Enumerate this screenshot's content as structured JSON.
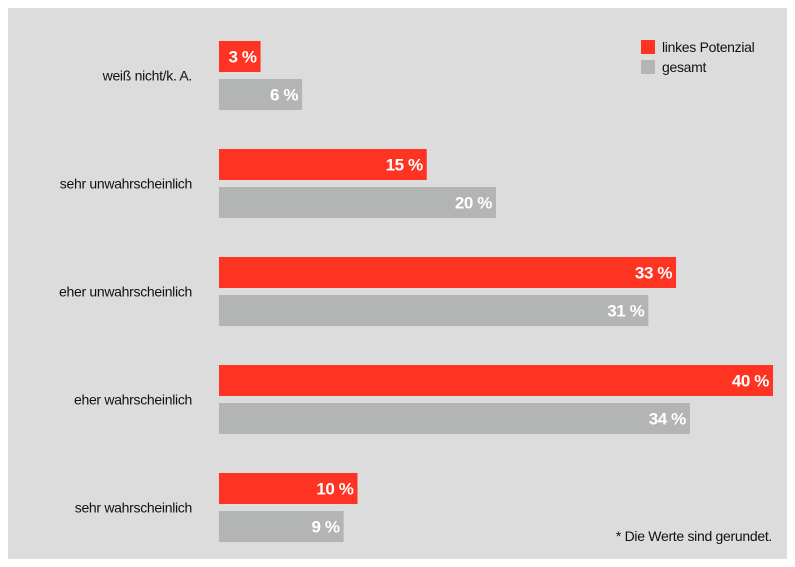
{
  "chart_data": {
    "type": "bar",
    "orientation": "horizontal",
    "categories": [
      "weiß nicht/k. A.",
      "sehr unwahrscheinlich",
      "eher unwahrscheinlich",
      "eher wahrscheinlich",
      "sehr wahrscheinlich"
    ],
    "series": [
      {
        "name": "linkes Potenzial",
        "color": "#ff3322",
        "values": [
          3,
          15,
          33,
          40,
          10
        ]
      },
      {
        "name": "gesamt",
        "color": "#b3b4b4",
        "values": [
          6,
          20,
          31,
          34,
          9
        ]
      }
    ],
    "value_labels": [
      [
        "3 %",
        "15 %",
        "33 %",
        "40 %",
        "10 %"
      ],
      [
        "6 %",
        "20 %",
        "31 %",
        "34 %",
        "9 %"
      ]
    ],
    "xlim": [
      0,
      40
    ],
    "legend_position": "top-right",
    "grid": false,
    "background": "#dcdcdc"
  },
  "footnote": "* Die Werte sind gerundet."
}
